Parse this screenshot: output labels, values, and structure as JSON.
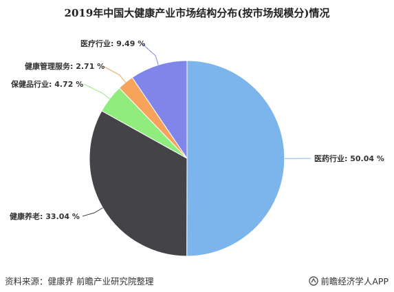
{
  "title": "2019年中国大健康产业市场结构分布(按市场规模分)情况",
  "chart_data": {
    "type": "pie",
    "title": "2019年中国大健康产业市场结构分布(按市场规模分)情况",
    "slices": [
      {
        "label": "医药行业",
        "value": 50.04,
        "display": "医药行业: 50.04 %",
        "color": "#7cb5ec"
      },
      {
        "label": "健康养老",
        "value": 33.04,
        "display": "健康养老: 33.04 %",
        "color": "#434348"
      },
      {
        "label": "保健品行业",
        "value": 4.72,
        "display": "保健品行业: 4.72 %",
        "color": "#90ed7d"
      },
      {
        "label": "健康管理服务",
        "value": 2.71,
        "display": "健康管理服务: 2.71 %",
        "color": "#f7a35c"
      },
      {
        "label": "医疗行业",
        "value": 9.49,
        "display": "医疗行业: 9.49 %",
        "color": "#8085e9"
      }
    ]
  },
  "footer": {
    "source": "资料来源：健康界 前瞻产业研究院整理",
    "brand": "前瞻经济学人APP",
    "brand_icon": "qianzhan-logo-icon"
  }
}
